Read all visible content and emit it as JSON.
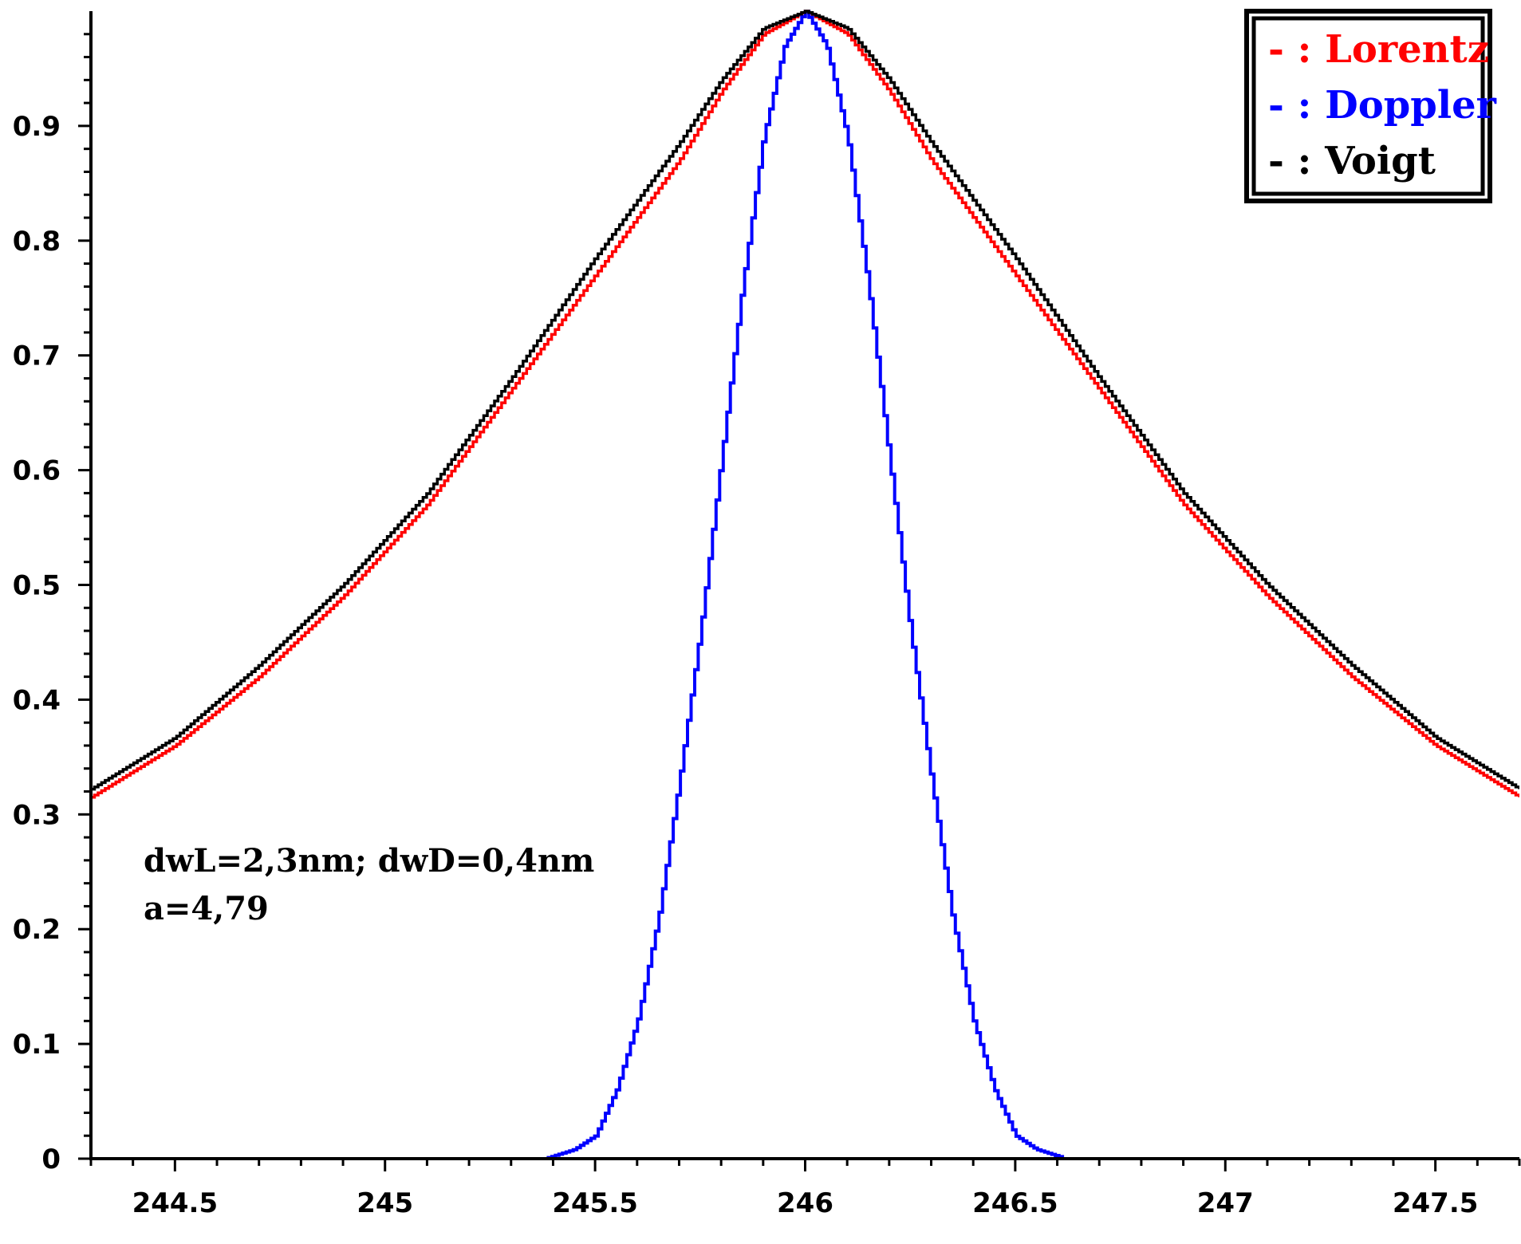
{
  "chart_data": {
    "type": "line",
    "xlim": [
      244.3,
      247.7
    ],
    "ylim": [
      0,
      1
    ],
    "x_ticks": [
      244.5,
      245,
      245.5,
      246,
      246.5,
      247,
      247.5
    ],
    "x_tick_labels": [
      "244.5",
      "245",
      "245.5",
      "246",
      "246.5",
      "247",
      "247.5"
    ],
    "y_ticks": [
      0,
      0.1,
      0.2,
      0.3,
      0.4,
      0.5,
      0.6,
      0.7,
      0.8,
      0.9
    ],
    "y_tick_labels": [
      "0",
      "0.1",
      "0.2",
      "0.3",
      "0.4",
      "0.5",
      "0.6",
      "0.7",
      "0.8",
      "0.9"
    ],
    "grid": false,
    "legend_position": "top-right",
    "series": [
      {
        "name": "Lorentz",
        "legend_label": "- : Lorentz",
        "color": "#ff0000",
        "x": [
          244.3,
          244.5,
          244.7,
          244.9,
          245.1,
          245.3,
          245.5,
          245.7,
          245.8,
          245.9,
          246.0,
          246.1,
          246.2,
          246.3,
          246.5,
          246.7,
          246.9,
          247.1,
          247.3,
          247.5,
          247.7
        ],
        "y": [
          0.315,
          0.36,
          0.42,
          0.49,
          0.57,
          0.67,
          0.77,
          0.87,
          0.93,
          0.98,
          1.0,
          0.98,
          0.93,
          0.87,
          0.77,
          0.67,
          0.57,
          0.49,
          0.42,
          0.36,
          0.315
        ]
      },
      {
        "name": "Doppler",
        "legend_label": "- : Doppler",
        "color": "#0000ff",
        "x": [
          245.38,
          245.45,
          245.5,
          245.55,
          245.6,
          245.65,
          245.7,
          245.75,
          245.8,
          245.85,
          245.9,
          245.95,
          246.0,
          246.05,
          246.1,
          246.15,
          246.2,
          246.25,
          246.3,
          246.35,
          246.4,
          246.45,
          246.5,
          246.55,
          246.62
        ],
        "y": [
          0.0,
          0.008,
          0.02,
          0.06,
          0.12,
          0.21,
          0.33,
          0.46,
          0.61,
          0.76,
          0.89,
          0.97,
          1.0,
          0.97,
          0.89,
          0.76,
          0.61,
          0.46,
          0.33,
          0.21,
          0.12,
          0.06,
          0.02,
          0.008,
          0.0
        ]
      },
      {
        "name": "Voigt",
        "legend_label": "- : Voigt",
        "color": "#000000",
        "x": [
          244.3,
          244.5,
          244.7,
          244.9,
          245.1,
          245.3,
          245.5,
          245.7,
          245.8,
          245.9,
          246.0,
          246.1,
          246.2,
          246.3,
          246.5,
          246.7,
          246.9,
          247.1,
          247.3,
          247.5,
          247.7
        ],
        "y": [
          0.322,
          0.367,
          0.43,
          0.5,
          0.58,
          0.68,
          0.785,
          0.885,
          0.94,
          0.985,
          1.0,
          0.985,
          0.94,
          0.885,
          0.785,
          0.68,
          0.58,
          0.5,
          0.43,
          0.367,
          0.322
        ]
      }
    ],
    "annotations": [
      "dwL=2,3nm; dwD=0,4nm",
      "a=4,79"
    ]
  }
}
